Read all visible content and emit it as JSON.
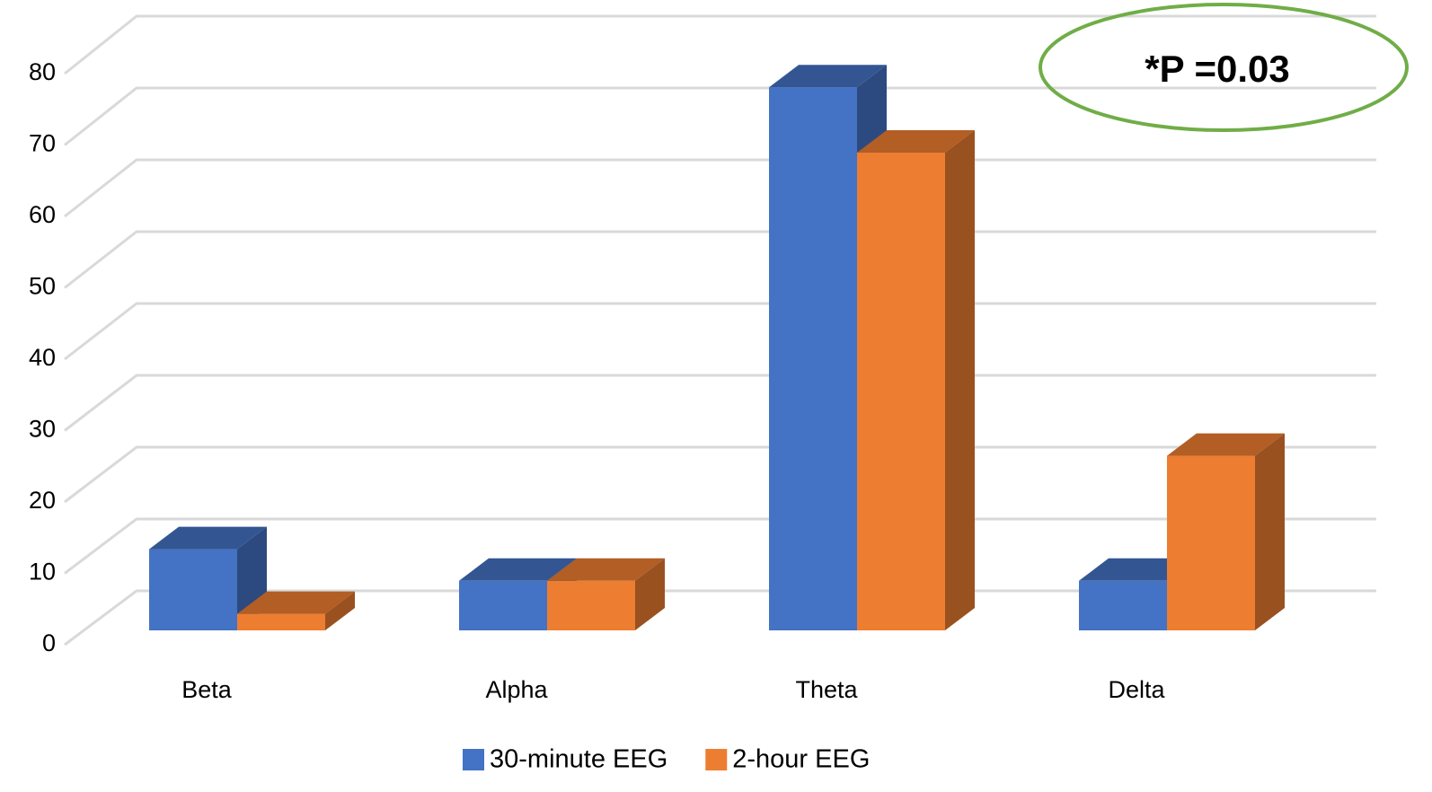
{
  "chart_data": {
    "type": "bar",
    "categories": [
      "Beta",
      "Alpha",
      "Theta",
      "Delta"
    ],
    "series": [
      {
        "name": "30-minute EEG",
        "color": "#4472c4",
        "values": [
          11.3,
          6.9,
          75.6,
          6.9
        ]
      },
      {
        "name": "2-hour EEG",
        "color": "#ed7d31",
        "values": [
          2.3,
          6.9,
          66.5,
          24.3
        ]
      }
    ],
    "ylim": [
      0,
      80
    ],
    "yticks": [
      0,
      10,
      20,
      30,
      40,
      50,
      60,
      70,
      80
    ],
    "grid": true,
    "annotation": "*P =0.03",
    "annotation_color": "#70ad47",
    "legend": "bottom"
  }
}
